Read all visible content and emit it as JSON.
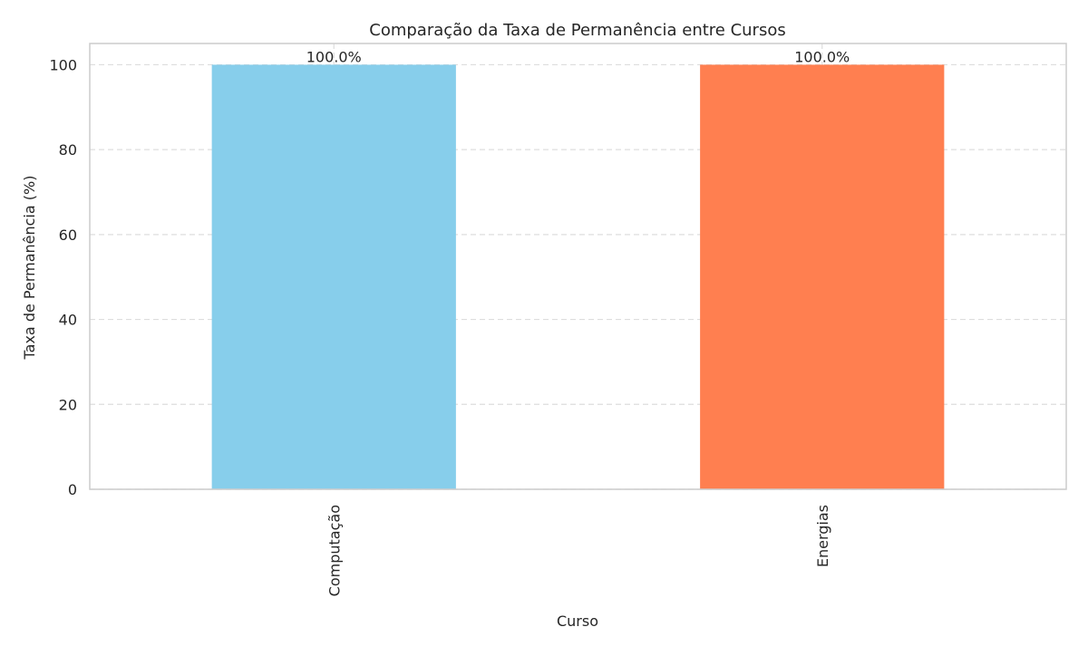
{
  "chart_data": {
    "type": "bar",
    "title": "Comparação da Taxa de Permanência entre Cursos",
    "xlabel": "Curso",
    "ylabel": "Taxa de Permanência (%)",
    "categories": [
      "Computação",
      "Energias"
    ],
    "values": [
      100.0,
      100.0
    ],
    "data_labels": [
      "100.0%",
      "100.0%"
    ],
    "bar_colors": [
      "#87ceeb",
      "#ff7f50"
    ],
    "ylim": [
      0,
      105
    ],
    "yticks": [
      0,
      20,
      40,
      60,
      80,
      100
    ],
    "ytick_labels": [
      "0",
      "20",
      "40",
      "60",
      "80",
      "100"
    ],
    "xtick_rotation": "vertical",
    "grid": "y-dashed",
    "colors": {
      "grid": "#dddddd",
      "spine": "#cccccc",
      "text": "#262626"
    }
  }
}
